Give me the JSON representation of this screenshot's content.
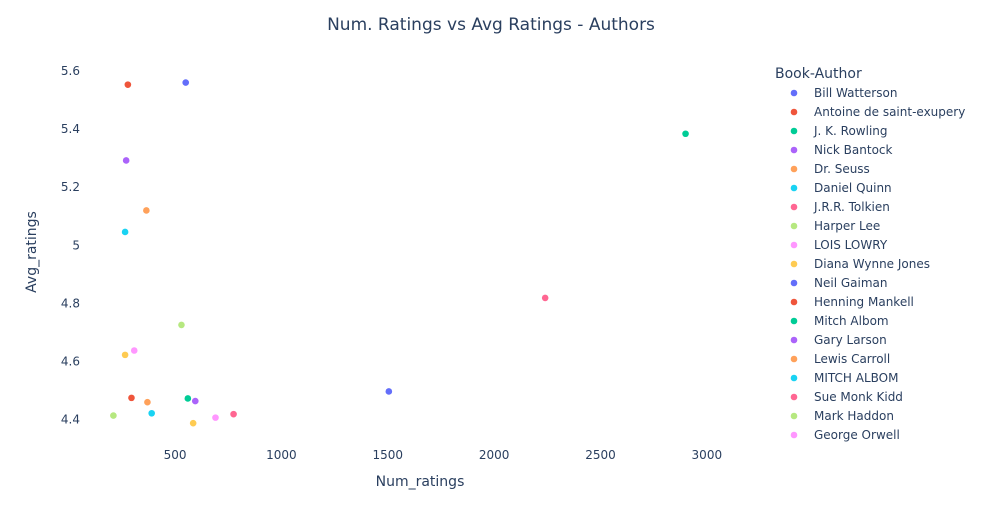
{
  "chart_data": {
    "type": "scatter",
    "title": "Num. Ratings vs Avg Ratings - Authors",
    "xlabel": "Num_ratings",
    "ylabel": "Avg_ratings",
    "xlim": [
      100,
      3250
    ],
    "ylim": [
      4.33,
      5.655
    ],
    "x_ticks": [
      500,
      1000,
      1500,
      2000,
      2500,
      3000
    ],
    "y_ticks": [
      4.4,
      4.6,
      4.8,
      5,
      5.2,
      5.4,
      5.6
    ],
    "y_tick_labels": [
      "4.4",
      "4.6",
      "4.8",
      "5",
      "5.2",
      "5.4",
      "5.6"
    ],
    "grid": false,
    "legend": {
      "title": "Book-Author",
      "placement": "right"
    },
    "series": [
      {
        "name": "Bill Watterson",
        "color": "#636efa",
        "x": [
          550
        ],
        "y": [
          5.56
        ]
      },
      {
        "name": "Antoine de saint-exupery",
        "color": "#EF553B",
        "x": [
          278
        ],
        "y": [
          5.553
        ]
      },
      {
        "name": "J. K. Rowling",
        "color": "#00cc96",
        "x": [
          2900
        ],
        "y": [
          5.384
        ]
      },
      {
        "name": "Nick Bantock",
        "color": "#ab63fa",
        "x": [
          270
        ],
        "y": [
          5.292
        ]
      },
      {
        "name": "Dr. Seuss",
        "color": "#FFA15A",
        "x": [
          365
        ],
        "y": [
          5.12
        ]
      },
      {
        "name": "Daniel Quinn",
        "color": "#19d3f3",
        "x": [
          265
        ],
        "y": [
          5.046
        ]
      },
      {
        "name": "J.R.R. Tolkien",
        "color": "#FF6692",
        "x": [
          2240
        ],
        "y": [
          4.819
        ]
      },
      {
        "name": "Harper Lee",
        "color": "#B6E880",
        "x": [
          530
        ],
        "y": [
          4.726
        ]
      },
      {
        "name": "LOIS LOWRY",
        "color": "#FF97FF",
        "x": [
          308
        ],
        "y": [
          4.638
        ]
      },
      {
        "name": "Diana Wynne Jones",
        "color": "#FECB52",
        "x": [
          265
        ],
        "y": [
          4.623
        ]
      },
      {
        "name": "Neil Gaiman",
        "color": "#636efa",
        "x": [
          1505
        ],
        "y": [
          4.497
        ]
      },
      {
        "name": "Henning Mankell",
        "color": "#EF553B",
        "x": [
          295
        ],
        "y": [
          4.475
        ]
      },
      {
        "name": "Mitch Albom",
        "color": "#00cc96",
        "x": [
          560
        ],
        "y": [
          4.473
        ]
      },
      {
        "name": "Gary Larson",
        "color": "#ab63fa",
        "x": [
          595
        ],
        "y": [
          4.464
        ]
      },
      {
        "name": "Lewis Carroll",
        "color": "#FFA15A",
        "x": [
          370
        ],
        "y": [
          4.46
        ]
      },
      {
        "name": "MITCH ALBOM",
        "color": "#19d3f3",
        "x": [
          390
        ],
        "y": [
          4.422
        ]
      },
      {
        "name": "Sue Monk Kidd",
        "color": "#FF6692",
        "x": [
          775
        ],
        "y": [
          4.419
        ]
      },
      {
        "name": "Mark Haddon",
        "color": "#B6E880",
        "x": [
          210
        ],
        "y": [
          4.414
        ]
      },
      {
        "name": "George Orwell",
        "color": "#FF97FF",
        "x": [
          690
        ],
        "y": [
          4.407
        ]
      },
      {
        "name": "Diana Wynne Jones",
        "color": "#FECB52",
        "x": [
          585
        ],
        "y": [
          4.388
        ],
        "legend": false
      }
    ]
  }
}
